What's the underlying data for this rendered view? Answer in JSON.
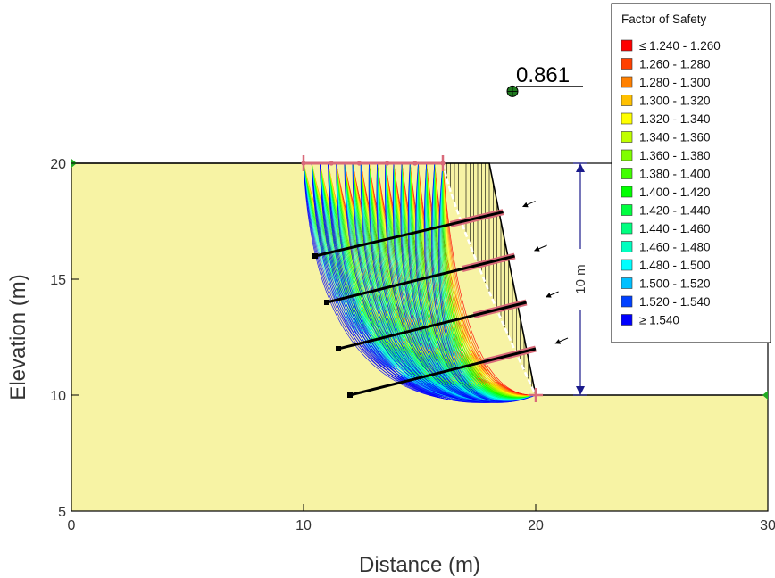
{
  "chart_data": {
    "type": "slope-stability",
    "xlabel": "Distance (m)",
    "ylabel": "Elevation (m)",
    "xlim": [
      0,
      30
    ],
    "ylim": [
      5,
      20
    ],
    "x_ticks": [
      "0",
      "10",
      "20",
      "30"
    ],
    "y_ticks": [
      "5",
      "10",
      "15",
      "20"
    ],
    "ground_profile": [
      [
        0,
        20
      ],
      [
        18,
        20
      ],
      [
        20,
        10
      ],
      [
        30,
        10
      ]
    ],
    "slip_entry_range": [
      10,
      16
    ],
    "slip_exit": [
      20,
      10
    ],
    "slip_center": [
      19,
      23.1
    ],
    "critical_fs_label": "0.861",
    "height_dimension_label": "10 m",
    "anchors": [
      {
        "head": [
          18.6,
          17.9
        ],
        "tail": [
          10.5,
          16.0
        ]
      },
      {
        "head": [
          19.1,
          16.0
        ],
        "tail": [
          11.0,
          14.0
        ]
      },
      {
        "head": [
          19.6,
          14.0
        ],
        "tail": [
          11.5,
          12.0
        ]
      },
      {
        "head": [
          20.0,
          12.0
        ],
        "tail": [
          12.0,
          10.0
        ]
      }
    ],
    "colors": {
      "soil": "#f7f3a4",
      "stroke": "#000000",
      "grip": "#d96a7a",
      "dimension": "#1a1a8c",
      "marker": "#22aa22"
    },
    "legend": {
      "title": "Factor of Safety",
      "position": "top-right",
      "entries": [
        {
          "label": "≤ 1.240 - 1.260",
          "color": "#ff0000"
        },
        {
          "label": "1.260 - 1.280",
          "color": "#ff4000"
        },
        {
          "label": "1.280 - 1.300",
          "color": "#ff8000"
        },
        {
          "label": "1.300 - 1.320",
          "color": "#ffc000"
        },
        {
          "label": "1.320 - 1.340",
          "color": "#ffff00"
        },
        {
          "label": "1.340 - 1.360",
          "color": "#c0ff00"
        },
        {
          "label": "1.360 - 1.380",
          "color": "#80ff00"
        },
        {
          "label": "1.380 - 1.400",
          "color": "#40ff00"
        },
        {
          "label": "1.400 - 1.420",
          "color": "#00ff00"
        },
        {
          "label": "1.420 - 1.440",
          "color": "#00ff40"
        },
        {
          "label": "1.440 - 1.460",
          "color": "#00ff80"
        },
        {
          "label": "1.460 - 1.480",
          "color": "#00ffc0"
        },
        {
          "label": "1.480 - 1.500",
          "color": "#00ffff"
        },
        {
          "label": "1.500 - 1.520",
          "color": "#00c0ff"
        },
        {
          "label": "1.520 - 1.540",
          "color": "#0040ff"
        },
        {
          "label": "≥ 1.540",
          "color": "#0000ff"
        }
      ]
    }
  }
}
